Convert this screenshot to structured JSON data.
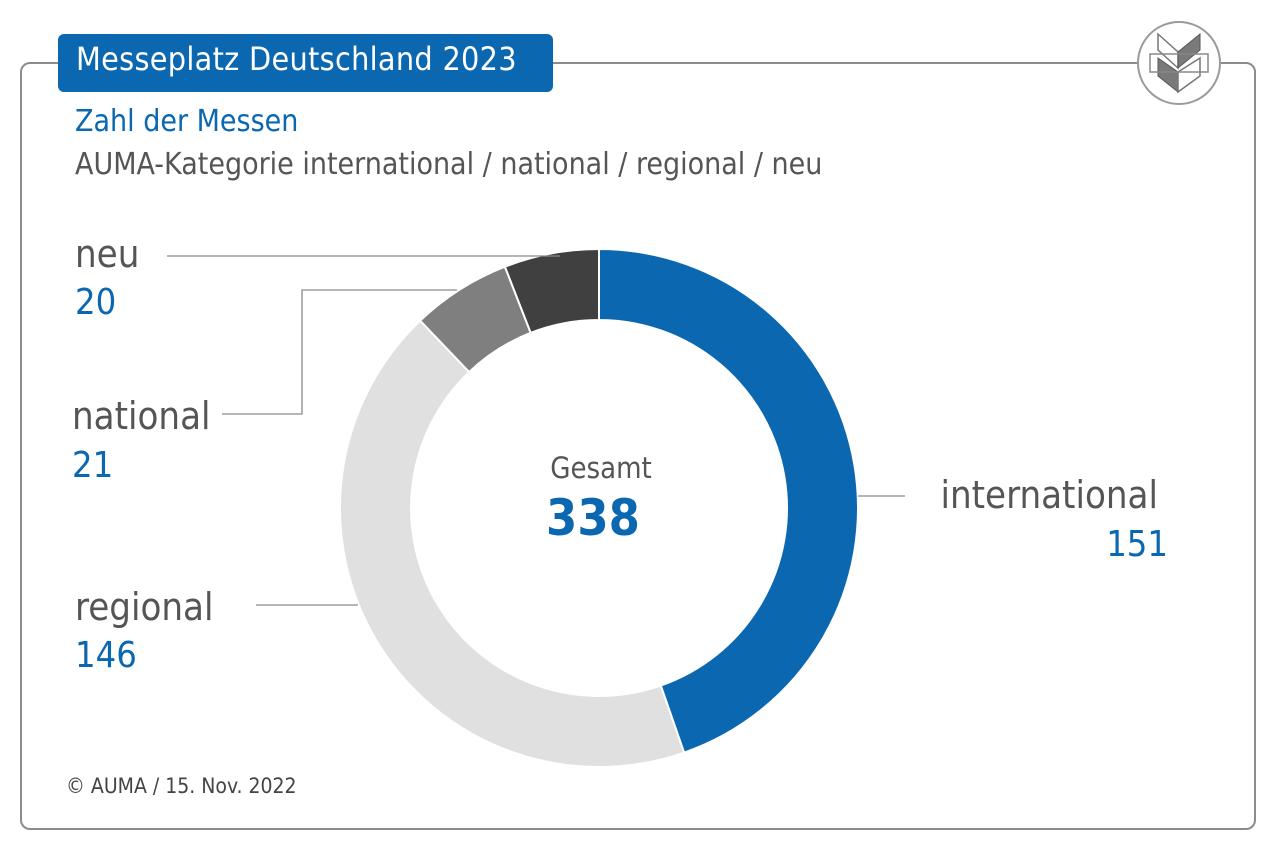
{
  "header": {
    "title": "Messeplatz Deutschland 2023",
    "subtitle": "Zahl der Messen",
    "subtitle2": "AUMA-Kategorie international / national / regional / neu"
  },
  "footer": {
    "source": "© AUMA / 15.  Nov. 2022"
  },
  "colors": {
    "brand": "#0a67b0"
  },
  "chart_data": {
    "type": "pie",
    "title": "Zahl der Messen",
    "center_label": "Gesamt",
    "total": "338",
    "series": [
      {
        "name": "international",
        "value": 151,
        "color": "#0a67b0"
      },
      {
        "name": "regional",
        "value": 146,
        "color": "#e0e0e0"
      },
      {
        "name": "national",
        "value": 21,
        "color": "#7f7f7f"
      },
      {
        "name": "neu",
        "value": 20,
        "color": "#404040"
      }
    ]
  }
}
